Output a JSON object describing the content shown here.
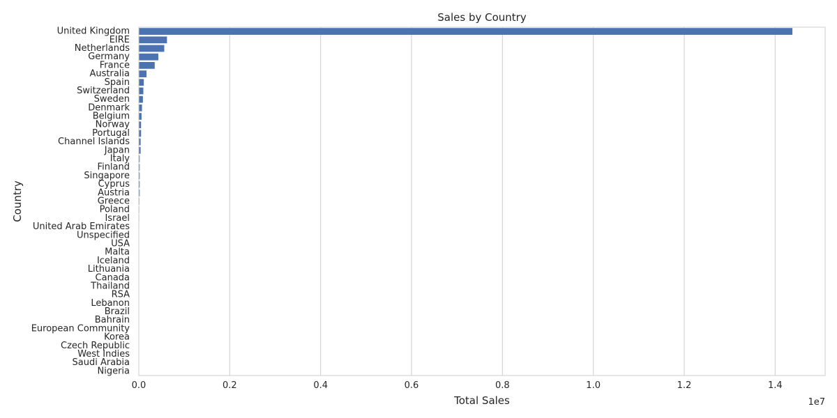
{
  "chart_data": {
    "type": "bar",
    "orientation": "horizontal",
    "title": "Sales by Country",
    "xlabel": "Total Sales",
    "ylabel": "Country",
    "x_offset_label": "1e7",
    "xlim": [
      0,
      1.51
    ],
    "x_ticks": [
      0.0,
      0.2,
      0.4,
      0.6,
      0.8,
      1.0,
      1.2,
      1.4
    ],
    "x_tick_labels": [
      "0.0",
      "0.2",
      "0.4",
      "0.6",
      "0.8",
      "1.0",
      "1.2",
      "1.4"
    ],
    "grid": "vertical",
    "bar_color": "#4c72b0",
    "categories": [
      "United Kingdom",
      "EIRE",
      "Netherlands",
      "Germany",
      "France",
      "Australia",
      "Spain",
      "Switzerland",
      "Sweden",
      "Denmark",
      "Belgium",
      "Norway",
      "Portugal",
      "Channel Islands",
      "Japan",
      "Italy",
      "Finland",
      "Singapore",
      "Cyprus",
      "Austria",
      "Greece",
      "Poland",
      "Israel",
      "United Arab Emirates",
      "Unspecified",
      "USA",
      "Malta",
      "Iceland",
      "Lithuania",
      "Canada",
      "Thailand",
      "RSA",
      "Lebanon",
      "Brazil",
      "Bahrain",
      "European Community",
      "Korea",
      "Czech Republic",
      "West Indies",
      "Saudi Arabia",
      "Nigeria"
    ],
    "values": [
      1.438,
      0.062,
      0.056,
      0.043,
      0.035,
      0.017,
      0.011,
      0.01,
      0.009,
      0.007,
      0.006,
      0.005,
      0.005,
      0.004,
      0.004,
      0.002,
      0.002,
      0.002,
      0.002,
      0.002,
      0.0012,
      0.001,
      0.0009,
      0.0008,
      0.0007,
      0.0006,
      0.0005,
      0.0005,
      0.0004,
      0.0004,
      0.0004,
      0.0003,
      0.0003,
      0.0003,
      0.0002,
      0.0002,
      0.0002,
      0.0002,
      0.0001,
      0.0001,
      0.0001
    ]
  }
}
